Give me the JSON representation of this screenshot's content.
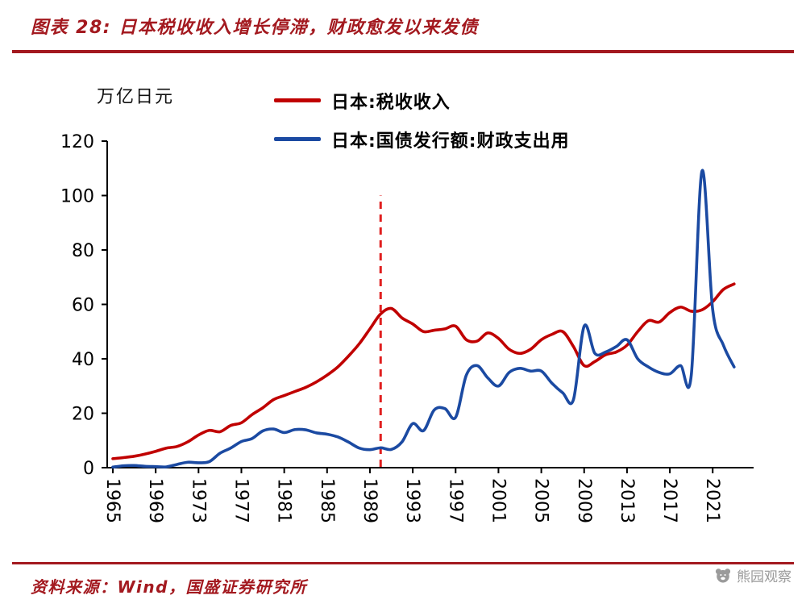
{
  "header": {
    "title": "图表 28:  日本税收收入增长停滞，财政愈发以来发债"
  },
  "footer": {
    "source": "资料来源：Wind，国盛证券研究所",
    "watermark": "熊园观察"
  },
  "colors": {
    "accent_dark_red": "#a3191f",
    "series_red": "#c00000",
    "series_blue": "#1b4aa2",
    "dashed_line_red": "#e01f1f",
    "axis_black": "#000000",
    "watermark_gray": "#9b9b9b"
  },
  "chart_data": {
    "type": "line",
    "title": "日本税收收入增长停滞，财政愈发以来发债",
    "unit_label": "万亿日元",
    "legend_position": "top",
    "grid": false,
    "ylim": [
      0,
      120
    ],
    "y_ticks": [
      0,
      20,
      40,
      60,
      80,
      100,
      120
    ],
    "x_tick_years": [
      1965,
      1969,
      1973,
      1977,
      1981,
      1985,
      1989,
      1993,
      1997,
      2001,
      2005,
      2009,
      2013,
      2017,
      2021
    ],
    "x": [
      1965,
      1966,
      1967,
      1968,
      1969,
      1970,
      1971,
      1972,
      1973,
      1974,
      1975,
      1976,
      1977,
      1978,
      1979,
      1980,
      1981,
      1982,
      1983,
      1984,
      1985,
      1986,
      1987,
      1988,
      1989,
      1990,
      1991,
      1992,
      1993,
      1994,
      1995,
      1996,
      1997,
      1998,
      1999,
      2000,
      2001,
      2002,
      2003,
      2004,
      2005,
      2006,
      2007,
      2008,
      2009,
      2010,
      2011,
      2012,
      2013,
      2014,
      2015,
      2016,
      2017,
      2018,
      2019,
      2020,
      2021,
      2022,
      2023
    ],
    "series": [
      {
        "name": "日本:税收收入",
        "color": "#c00000",
        "values": [
          3.3,
          3.7,
          4.2,
          5.0,
          6.0,
          7.2,
          7.8,
          9.5,
          12.0,
          13.7,
          13.2,
          15.5,
          16.5,
          19.5,
          22.0,
          25.0,
          26.5,
          28.0,
          29.5,
          31.5,
          34.0,
          37.0,
          41.0,
          45.5,
          51.0,
          56.5,
          58.5,
          55.0,
          52.8,
          50.0,
          50.5,
          51.0,
          52.0,
          47.0,
          46.5,
          49.5,
          47.5,
          43.5,
          42.0,
          43.5,
          47.0,
          49.0,
          50.0,
          44.5,
          37.5,
          39.0,
          41.5,
          42.5,
          45.0,
          50.0,
          54.0,
          53.5,
          57.0,
          59.0,
          57.5,
          58.0,
          61.0,
          65.5,
          67.5
        ]
      },
      {
        "name": "日本:国债发行额:财政支出用",
        "color": "#1b4aa2",
        "values": [
          0.2,
          0.7,
          0.8,
          0.5,
          0.4,
          0.3,
          1.2,
          2.0,
          1.8,
          2.2,
          5.3,
          7.2,
          9.6,
          10.7,
          13.5,
          14.2,
          12.9,
          14.0,
          13.9,
          12.8,
          12.3,
          11.3,
          9.4,
          7.2,
          6.6,
          7.3,
          6.7,
          9.5,
          16.2,
          13.6,
          21.2,
          21.7,
          18.5,
          34.0,
          37.5,
          33.0,
          30.0,
          35.0,
          36.5,
          35.5,
          35.5,
          31.0,
          27.5,
          25.0,
          52.0,
          42.0,
          42.5,
          44.5,
          47.0,
          40.0,
          37.0,
          35.0,
          34.5,
          37.5,
          34.0,
          109.0,
          58.0,
          45.0,
          37.0
        ]
      }
    ],
    "vline": {
      "x": 1990,
      "y_top": 100,
      "style": "dashed",
      "color": "#e01f1f"
    }
  }
}
